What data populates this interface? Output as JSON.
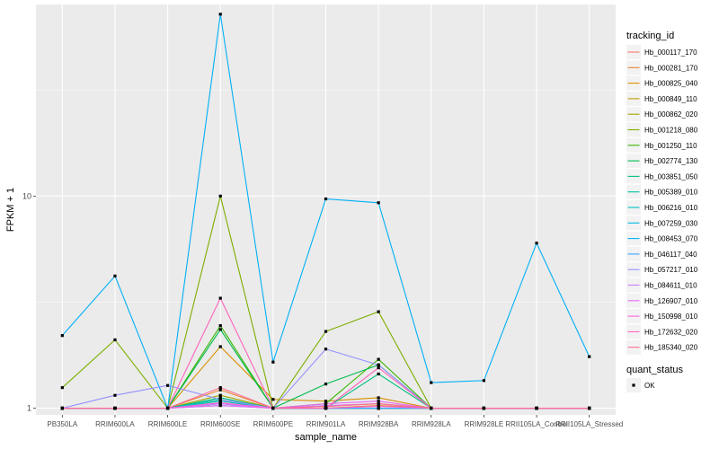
{
  "chart_data": {
    "type": "line",
    "xlabel": "sample_name",
    "ylabel": "FPKM + 1",
    "y_scale": "log10",
    "ylim": [
      0.93,
      80
    ],
    "y_ticks": [
      {
        "value": 1,
        "label": "1"
      },
      {
        "value": 10,
        "label": "10"
      }
    ],
    "categories": [
      "PB350LA",
      "RRIM600LA",
      "RRIM600LE",
      "RRIM600SE",
      "RRIM600PE",
      "RRIM901LA",
      "RRIM928BA",
      "RRIM928LA",
      "RRIM928LE",
      "RRII105LA_Control",
      "RRII105LA_Stressed"
    ],
    "grid": true,
    "legend_position": "right",
    "legend_title": "tracking_id",
    "shape_legend": {
      "title": "quant_status",
      "entries": [
        "OK"
      ]
    },
    "series": [
      {
        "name": "Hb_000117_170",
        "color": "#F8766D",
        "values": [
          1,
          1,
          1,
          1.05,
          1,
          1,
          1,
          1,
          1,
          1,
          1
        ]
      },
      {
        "name": "Hb_000281_170",
        "color": "#EA8331",
        "values": [
          1,
          1,
          1,
          1.22,
          1,
          1,
          1.03,
          1,
          1,
          1,
          1
        ]
      },
      {
        "name": "Hb_000825_040",
        "color": "#D89000",
        "values": [
          1,
          1,
          1,
          1.95,
          1.1,
          1.08,
          1.12,
          1,
          1,
          1,
          1
        ]
      },
      {
        "name": "Hb_000849_110",
        "color": "#C09B00",
        "values": [
          1,
          1,
          1,
          1.08,
          1,
          1.02,
          1.05,
          1,
          1,
          1,
          1
        ]
      },
      {
        "name": "Hb_000862_020",
        "color": "#A3A500",
        "values": [
          1,
          1,
          1,
          1.15,
          1,
          1,
          1,
          1,
          1,
          1,
          1
        ]
      },
      {
        "name": "Hb_001218_080",
        "color": "#7CAE00",
        "values": [
          1.25,
          2.1,
          1,
          10,
          1,
          2.3,
          2.85,
          1,
          1,
          1,
          1
        ]
      },
      {
        "name": "Hb_001250_110",
        "color": "#39B600",
        "values": [
          1,
          1,
          1,
          2.45,
          1,
          1.05,
          1.7,
          1,
          1,
          1,
          1
        ]
      },
      {
        "name": "Hb_002774_130",
        "color": "#00BB4E",
        "values": [
          1,
          1,
          1,
          2.35,
          1,
          1.3,
          1.6,
          1,
          1,
          1,
          1
        ]
      },
      {
        "name": "Hb_003851_050",
        "color": "#00BF7D",
        "values": [
          1,
          1,
          1,
          1.12,
          1,
          1,
          1.45,
          1,
          1,
          1,
          1
        ]
      },
      {
        "name": "Hb_005389_010",
        "color": "#00C1A3",
        "values": [
          1,
          1,
          1,
          1.1,
          1,
          1,
          1,
          1,
          1,
          1,
          1
        ]
      },
      {
        "name": "Hb_006216_010",
        "color": "#00BFC4",
        "values": [
          1,
          1,
          1,
          1.08,
          1,
          1,
          1,
          1,
          1,
          1,
          1
        ]
      },
      {
        "name": "Hb_007259_030",
        "color": "#00BAE0",
        "values": [
          1,
          1,
          1,
          1.05,
          1,
          1,
          1,
          1,
          1,
          1,
          1
        ]
      },
      {
        "name": "Hb_008453_070",
        "color": "#00B0F6",
        "values": [
          2.2,
          4.2,
          1,
          72,
          1.65,
          9.7,
          9.3,
          1.32,
          1.35,
          6,
          1.75
        ]
      },
      {
        "name": "Hb_046117_040",
        "color": "#35A2FF",
        "values": [
          1,
          1,
          1,
          1.03,
          1,
          1,
          1,
          1,
          1,
          1,
          1
        ]
      },
      {
        "name": "Hb_057217_010",
        "color": "#9590FF",
        "values": [
          1,
          1.15,
          1.28,
          1.1,
          1,
          1.9,
          1.6,
          1,
          1,
          1,
          1
        ]
      },
      {
        "name": "Hb_084611_010",
        "color": "#C77CFF",
        "values": [
          1,
          1,
          1,
          1.05,
          1,
          1.03,
          1.05,
          1,
          1,
          1,
          1
        ]
      },
      {
        "name": "Hb_126907_010",
        "color": "#E76BF3",
        "values": [
          1,
          1,
          1,
          1.03,
          1,
          1.05,
          1.08,
          1,
          1,
          1,
          1
        ]
      },
      {
        "name": "Hb_150998_010",
        "color": "#FA62DB",
        "values": [
          1,
          1,
          1,
          1.06,
          1,
          1,
          1.02,
          1,
          1,
          1,
          1
        ]
      },
      {
        "name": "Hb_172632_020",
        "color": "#FF62BC",
        "values": [
          1,
          1,
          1,
          3.3,
          1,
          1,
          1.55,
          1,
          1,
          1,
          1
        ]
      },
      {
        "name": "Hb_185340_020",
        "color": "#FF6C91",
        "values": [
          1,
          1,
          1,
          1.25,
          1,
          1.02,
          1.05,
          1,
          1,
          1,
          1
        ]
      }
    ]
  }
}
